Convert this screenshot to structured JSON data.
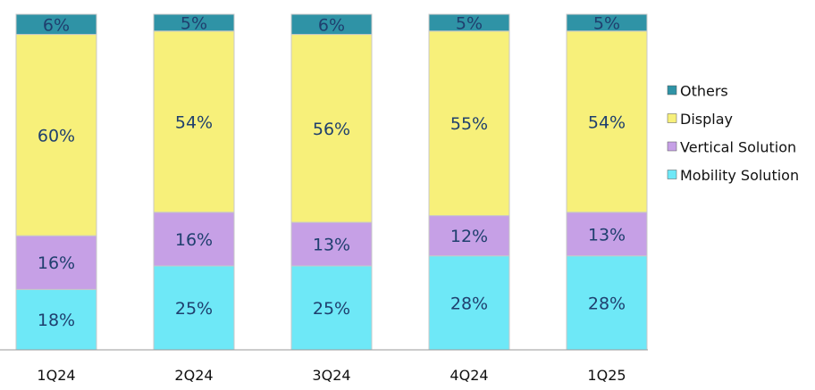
{
  "chart_data": {
    "type": "bar",
    "stacked": true,
    "percent": true,
    "categories": [
      "1Q24",
      "2Q24",
      "3Q24",
      "4Q24",
      "1Q25"
    ],
    "series": [
      {
        "name": "Mobility Solution",
        "color": "#6ee8f7",
        "values": [
          18,
          25,
          25,
          28,
          28
        ]
      },
      {
        "name": "Vertical Solution",
        "color": "#c6a0e6",
        "values": [
          16,
          16,
          13,
          12,
          13
        ]
      },
      {
        "name": "Display",
        "color": "#f7f07a",
        "values": [
          60,
          54,
          56,
          55,
          54
        ]
      },
      {
        "name": "Others",
        "color": "#2f93a6",
        "values": [
          6,
          5,
          6,
          5,
          5
        ]
      }
    ],
    "labels": {
      "Mobility Solution": [
        "18%",
        "25%",
        "25%",
        "28%",
        "28%"
      ],
      "Vertical Solution": [
        "16%",
        "16%",
        "13%",
        "12%",
        "13%"
      ],
      "Display": [
        "60%",
        "54%",
        "56%",
        "55%",
        "54%"
      ],
      "Others": [
        "6%",
        "5%",
        "6%",
        "5%",
        "5%"
      ]
    },
    "legend_order": [
      "Others",
      "Display",
      "Vertical Solution",
      "Mobility Solution"
    ],
    "legend_position": "right",
    "title": "",
    "xlabel": "",
    "ylabel": "",
    "ylim": [
      0,
      100
    ],
    "grid": false
  }
}
